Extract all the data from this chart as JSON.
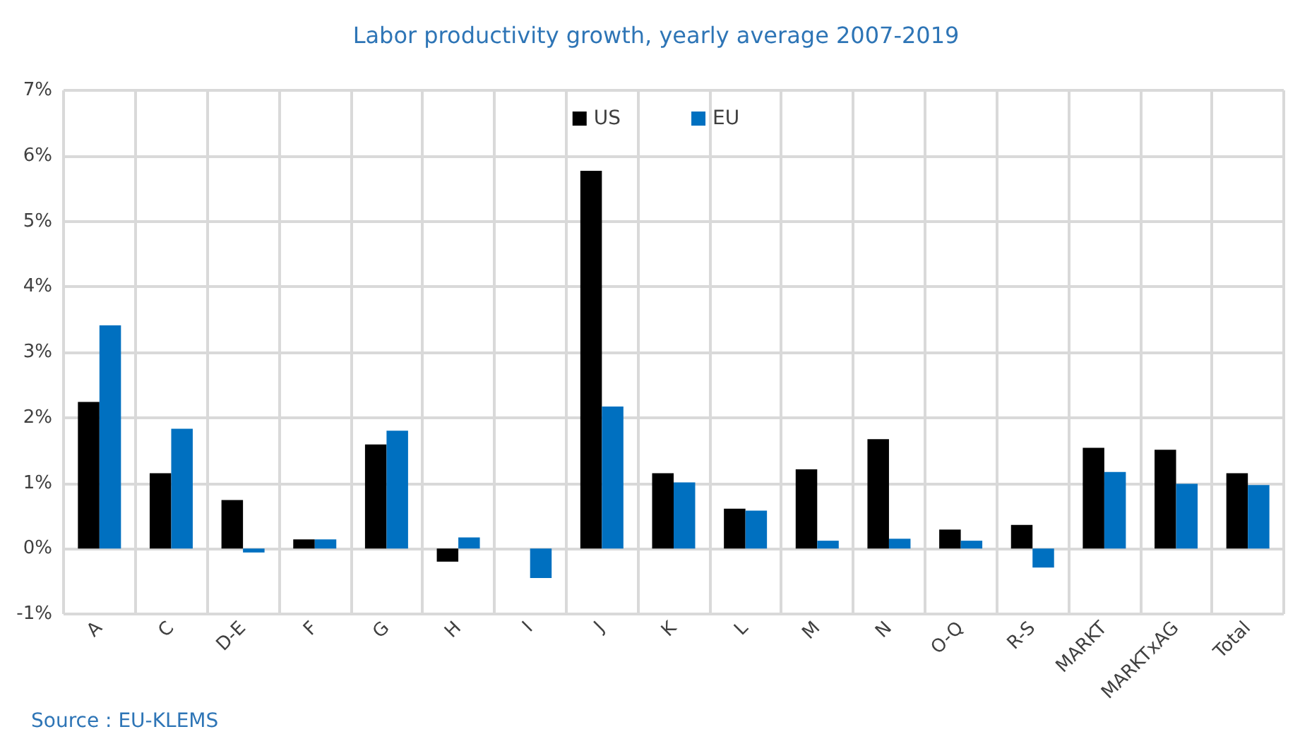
{
  "chart_data": {
    "type": "bar",
    "title": "Labor productivity growth, yearly average 2007-2019",
    "categories": [
      "A",
      "C",
      "D-E",
      "F",
      "G",
      "H",
      "I",
      "J",
      "K",
      "L",
      "M",
      "N",
      "O-Q",
      "R-S",
      "MARKT",
      "MARKTxAG",
      "Total"
    ],
    "series": [
      {
        "name": "US",
        "color": "#000000",
        "values": [
          2.24,
          1.15,
          0.74,
          0.14,
          1.59,
          -0.2,
          0,
          5.77,
          1.15,
          0.61,
          1.21,
          1.67,
          0.29,
          0.36,
          1.54,
          1.51,
          1.15
        ]
      },
      {
        "name": "EU",
        "color": "#0070c0",
        "values": [
          3.41,
          1.83,
          -0.06,
          0.14,
          1.8,
          0.17,
          -0.45,
          2.17,
          1.01,
          0.58,
          0.12,
          0.15,
          0.12,
          -0.29,
          1.17,
          0.99,
          0.97
        ]
      }
    ],
    "ylim": [
      -1,
      7
    ],
    "yticks": [
      {
        "value": -1,
        "label": "-1%"
      },
      {
        "value": 0,
        "label": "0%"
      },
      {
        "value": 1,
        "label": "1%"
      },
      {
        "value": 2,
        "label": "2%"
      },
      {
        "value": 3,
        "label": "3%"
      },
      {
        "value": 4,
        "label": "4%"
      },
      {
        "value": 5,
        "label": "5%"
      },
      {
        "value": 6,
        "label": "6%"
      },
      {
        "value": 7,
        "label": "7%"
      }
    ],
    "grid": true,
    "legend": "top",
    "annotations": [
      "Source : EU-KLEMS"
    ]
  }
}
